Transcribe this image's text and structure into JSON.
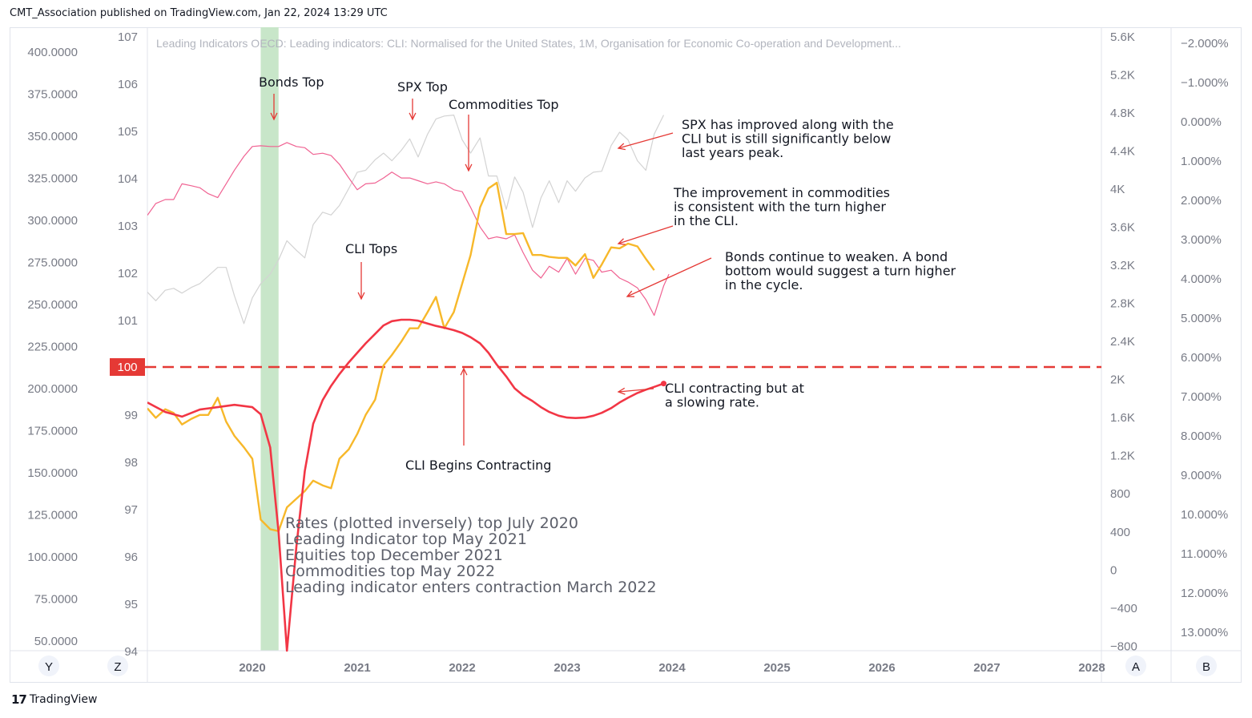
{
  "header": {
    "published": "CMT_Association published on TradingView.com, Jan 22, 2024 13:29 UTC"
  },
  "footer": {
    "brand": "TradingView",
    "logo_glyph": "17"
  },
  "chart_data": {
    "type": "line",
    "title": "Leading Indicators OECD: Leading indicators: CLI: Normalised for the United States, 1M, Organisation for Economic Co-operation and Development...",
    "x_axis": {
      "ticks": [
        "2020",
        "2021",
        "2022",
        "2023",
        "2024",
        "2025",
        "2026",
        "2027",
        "2028"
      ]
    },
    "axes": {
      "far_left": {
        "ticks": [
          "400.0000",
          "375.0000",
          "350.0000",
          "325.0000",
          "300.0000",
          "275.0000",
          "250.0000",
          "225.0000",
          "200.0000",
          "175.0000",
          "150.0000",
          "125.0000",
          "100.0000",
          "75.0000",
          "50.0000"
        ],
        "range": [
          50,
          400
        ]
      },
      "cli": {
        "ticks": [
          "107",
          "106",
          "105",
          "104",
          "103",
          "102",
          "101",
          "99",
          "98",
          "97",
          "96",
          "95",
          "94"
        ],
        "range": [
          94,
          107
        ],
        "marker": "100"
      },
      "spx": {
        "ticks": [
          "5.6K",
          "5.2K",
          "4.8K",
          "4.4K",
          "4K",
          "3.6K",
          "3.2K",
          "2.8K",
          "2.4K",
          "2K",
          "1.6K",
          "1.2K",
          "800",
          "400",
          "0",
          "−400",
          "−800"
        ],
        "range": [
          -800,
          5600
        ]
      },
      "rates": {
        "ticks": [
          "−2.000%",
          "−1.000%",
          "0.000%",
          "1.000%",
          "2.000%",
          "3.000%",
          "4.000%",
          "5.000%",
          "6.000%",
          "7.000%",
          "8.000%",
          "9.000%",
          "10.000%",
          "11.000%",
          "12.000%",
          "13.000%"
        ],
        "range": [
          -2,
          13
        ],
        "inverted": true
      }
    },
    "scale_buttons": {
      "y": "Y",
      "z": "Z",
      "a": "A",
      "b": "B"
    },
    "shaded_period": {
      "x_start": 2020.08,
      "x_end": 2020.25,
      "color": "#c8e6c9"
    },
    "series": [
      {
        "axis": "cli",
        "color": "#f23645",
        "points": [
          [
            2019.0,
            99.25
          ],
          [
            2019.17,
            99.05
          ],
          [
            2019.33,
            98.95
          ],
          [
            2019.5,
            99.1
          ],
          [
            2019.67,
            99.15
          ],
          [
            2019.83,
            99.2
          ],
          [
            2020.0,
            99.15
          ],
          [
            2020.08,
            99.0
          ],
          [
            2020.17,
            98.3
          ],
          [
            2020.25,
            96.5
          ],
          [
            2020.33,
            94.0
          ],
          [
            2020.42,
            96.2
          ],
          [
            2020.5,
            97.8
          ],
          [
            2020.58,
            98.8
          ],
          [
            2020.67,
            99.3
          ],
          [
            2020.75,
            99.6
          ],
          [
            2020.83,
            99.85
          ],
          [
            2020.92,
            100.1
          ],
          [
            2021.0,
            100.3
          ],
          [
            2021.08,
            100.5
          ],
          [
            2021.17,
            100.7
          ],
          [
            2021.25,
            100.88
          ],
          [
            2021.33,
            100.97
          ],
          [
            2021.42,
            101.0
          ],
          [
            2021.5,
            101.0
          ],
          [
            2021.58,
            100.98
          ],
          [
            2021.67,
            100.92
          ],
          [
            2021.75,
            100.87
          ],
          [
            2021.83,
            100.83
          ],
          [
            2021.92,
            100.78
          ],
          [
            2022.0,
            100.72
          ],
          [
            2022.08,
            100.63
          ],
          [
            2022.17,
            100.5
          ],
          [
            2022.25,
            100.3
          ],
          [
            2022.33,
            100.05
          ],
          [
            2022.42,
            99.8
          ],
          [
            2022.5,
            99.55
          ],
          [
            2022.58,
            99.4
          ],
          [
            2022.67,
            99.28
          ],
          [
            2022.75,
            99.15
          ],
          [
            2022.83,
            99.05
          ],
          [
            2022.92,
            98.97
          ],
          [
            2023.0,
            98.93
          ],
          [
            2023.08,
            98.92
          ],
          [
            2023.17,
            98.93
          ],
          [
            2023.25,
            98.97
          ],
          [
            2023.33,
            99.03
          ],
          [
            2023.42,
            99.13
          ],
          [
            2023.5,
            99.25
          ],
          [
            2023.58,
            99.35
          ],
          [
            2023.67,
            99.45
          ],
          [
            2023.75,
            99.52
          ],
          [
            2023.83,
            99.58
          ],
          [
            2023.92,
            99.65
          ]
        ]
      },
      {
        "axis": "spx",
        "color": "#f7b82a",
        "points": [
          [
            2019.0,
            1690
          ],
          [
            2019.08,
            1590
          ],
          [
            2019.17,
            1680
          ],
          [
            2019.25,
            1640
          ],
          [
            2019.33,
            1520
          ],
          [
            2019.42,
            1580
          ],
          [
            2019.5,
            1620
          ],
          [
            2019.58,
            1620
          ],
          [
            2019.67,
            1800
          ],
          [
            2019.75,
            1550
          ],
          [
            2019.83,
            1400
          ],
          [
            2019.92,
            1280
          ],
          [
            2020.0,
            1160
          ],
          [
            2020.08,
            520
          ],
          [
            2020.17,
            420
          ],
          [
            2020.25,
            400
          ],
          [
            2020.33,
            650
          ],
          [
            2020.42,
            740
          ],
          [
            2020.5,
            820
          ],
          [
            2020.58,
            930
          ],
          [
            2020.67,
            880
          ],
          [
            2020.75,
            850
          ],
          [
            2020.83,
            1160
          ],
          [
            2020.92,
            1260
          ],
          [
            2021.0,
            1420
          ],
          [
            2021.08,
            1620
          ],
          [
            2021.17,
            1780
          ],
          [
            2021.25,
            2140
          ],
          [
            2021.33,
            2250
          ],
          [
            2021.42,
            2390
          ],
          [
            2021.5,
            2530
          ],
          [
            2021.58,
            2530
          ],
          [
            2021.67,
            2700
          ],
          [
            2021.75,
            2860
          ],
          [
            2021.83,
            2530
          ],
          [
            2021.92,
            2700
          ],
          [
            2022.0,
            3000
          ],
          [
            2022.08,
            3300
          ],
          [
            2022.17,
            3800
          ],
          [
            2022.25,
            4000
          ],
          [
            2022.33,
            4060
          ],
          [
            2022.42,
            3520
          ],
          [
            2022.5,
            3520
          ],
          [
            2022.58,
            3530
          ],
          [
            2022.67,
            3300
          ],
          [
            2022.75,
            3300
          ],
          [
            2022.83,
            3280
          ],
          [
            2022.92,
            3270
          ],
          [
            2023.0,
            3270
          ],
          [
            2023.08,
            3190
          ],
          [
            2023.17,
            3310
          ],
          [
            2023.25,
            3060
          ],
          [
            2023.33,
            3200
          ],
          [
            2023.42,
            3380
          ],
          [
            2023.5,
            3370
          ],
          [
            2023.58,
            3420
          ],
          [
            2023.67,
            3390
          ],
          [
            2023.75,
            3260
          ],
          [
            2023.83,
            3140
          ]
        ]
      },
      {
        "axis": "spx",
        "color": "#d3d3d3",
        "points": [
          [
            2019.0,
            2910
          ],
          [
            2019.08,
            2820
          ],
          [
            2019.17,
            2930
          ],
          [
            2019.25,
            2950
          ],
          [
            2019.33,
            2900
          ],
          [
            2019.42,
            2960
          ],
          [
            2019.5,
            3000
          ],
          [
            2019.58,
            3080
          ],
          [
            2019.67,
            3170
          ],
          [
            2019.75,
            3170
          ],
          [
            2019.83,
            2870
          ],
          [
            2019.92,
            2580
          ],
          [
            2020.0,
            2850
          ],
          [
            2020.08,
            3000
          ],
          [
            2020.17,
            3100
          ],
          [
            2020.25,
            3250
          ],
          [
            2020.33,
            3450
          ],
          [
            2020.42,
            3350
          ],
          [
            2020.5,
            3270
          ],
          [
            2020.58,
            3620
          ],
          [
            2020.67,
            3750
          ],
          [
            2020.75,
            3720
          ],
          [
            2020.83,
            3820
          ],
          [
            2020.92,
            4000
          ],
          [
            2021.0,
            4170
          ],
          [
            2021.08,
            4190
          ],
          [
            2021.17,
            4300
          ],
          [
            2021.25,
            4370
          ],
          [
            2021.33,
            4290
          ],
          [
            2021.42,
            4400
          ],
          [
            2021.5,
            4520
          ],
          [
            2021.58,
            4330
          ],
          [
            2021.67,
            4570
          ],
          [
            2021.75,
            4730
          ],
          [
            2021.83,
            4760
          ],
          [
            2021.92,
            4770
          ],
          [
            2022.0,
            4510
          ],
          [
            2022.08,
            4370
          ],
          [
            2022.17,
            4530
          ],
          [
            2022.25,
            4130
          ],
          [
            2022.33,
            4130
          ],
          [
            2022.42,
            3780
          ],
          [
            2022.5,
            4120
          ],
          [
            2022.58,
            3960
          ],
          [
            2022.67,
            3590
          ],
          [
            2022.75,
            3900
          ],
          [
            2022.83,
            4080
          ],
          [
            2022.92,
            3850
          ],
          [
            2023.0,
            4080
          ],
          [
            2023.08,
            3970
          ],
          [
            2023.17,
            4110
          ],
          [
            2023.25,
            4170
          ],
          [
            2023.33,
            4180
          ],
          [
            2023.42,
            4450
          ],
          [
            2023.5,
            4590
          ],
          [
            2023.58,
            4510
          ],
          [
            2023.67,
            4290
          ],
          [
            2023.75,
            4190
          ],
          [
            2023.83,
            4570
          ],
          [
            2023.92,
            4770
          ]
        ]
      },
      {
        "axis": "rates",
        "color": "#f06292",
        "points": [
          [
            2019.0,
            2.4
          ],
          [
            2019.08,
            2.1
          ],
          [
            2019.17,
            2.0
          ],
          [
            2019.25,
            2.0
          ],
          [
            2019.33,
            1.6
          ],
          [
            2019.42,
            1.65
          ],
          [
            2019.5,
            1.7
          ],
          [
            2019.58,
            1.85
          ],
          [
            2019.67,
            1.95
          ],
          [
            2019.75,
            1.6
          ],
          [
            2019.83,
            1.25
          ],
          [
            2019.92,
            0.9
          ],
          [
            2020.0,
            0.65
          ],
          [
            2020.08,
            0.63
          ],
          [
            2020.17,
            0.65
          ],
          [
            2020.25,
            0.65
          ],
          [
            2020.33,
            0.55
          ],
          [
            2020.42,
            0.65
          ],
          [
            2020.5,
            0.68
          ],
          [
            2020.58,
            0.85
          ],
          [
            2020.67,
            0.82
          ],
          [
            2020.75,
            0.88
          ],
          [
            2020.83,
            1.1
          ],
          [
            2020.92,
            1.45
          ],
          [
            2021.0,
            1.75
          ],
          [
            2021.08,
            1.6
          ],
          [
            2021.17,
            1.58
          ],
          [
            2021.25,
            1.45
          ],
          [
            2021.33,
            1.3
          ],
          [
            2021.42,
            1.45
          ],
          [
            2021.5,
            1.45
          ],
          [
            2021.58,
            1.52
          ],
          [
            2021.67,
            1.6
          ],
          [
            2021.75,
            1.55
          ],
          [
            2021.83,
            1.6
          ],
          [
            2021.92,
            1.75
          ],
          [
            2022.0,
            1.8
          ],
          [
            2022.08,
            2.2
          ],
          [
            2022.17,
            2.7
          ],
          [
            2022.25,
            3.0
          ],
          [
            2022.33,
            2.95
          ],
          [
            2022.42,
            3.0
          ],
          [
            2022.5,
            2.9
          ],
          [
            2022.58,
            3.35
          ],
          [
            2022.67,
            3.8
          ],
          [
            2022.75,
            4.0
          ],
          [
            2022.83,
            3.7
          ],
          [
            2022.92,
            3.85
          ],
          [
            2023.0,
            3.5
          ],
          [
            2023.08,
            3.9
          ],
          [
            2023.17,
            3.5
          ],
          [
            2023.25,
            3.55
          ],
          [
            2023.33,
            3.85
          ],
          [
            2023.42,
            3.8
          ],
          [
            2023.5,
            4.0
          ],
          [
            2023.58,
            4.1
          ],
          [
            2023.67,
            4.25
          ],
          [
            2023.75,
            4.55
          ],
          [
            2023.83,
            4.95
          ],
          [
            2023.92,
            4.2
          ],
          [
            2023.97,
            3.9
          ]
        ]
      }
    ],
    "annotations": [
      {
        "text": "Bonds Top"
      },
      {
        "text": "SPX Top"
      },
      {
        "text": "Commodities Top"
      },
      {
        "text": "CLI Tops"
      },
      {
        "text": "CLI Begins Contracting"
      },
      {
        "text": "SPX has improved along with the CLI but is still significantly below last years peak.",
        "lines": [
          "SPX has improved along with the",
          "CLI but is still significantly below",
          "last years peak."
        ]
      },
      {
        "text": "The improvement in commodities is consistent with the turn higher in the CLI.",
        "lines": [
          "The improvement in commodities",
          "is consistent with the turn higher",
          "in the CLI."
        ]
      },
      {
        "text": "Bonds continue to weaken. A bond bottom would suggest a turn higher in the cycle.",
        "lines": [
          "Bonds continue to weaken. A bond",
          "bottom would suggest a turn higher",
          "in the cycle."
        ]
      },
      {
        "text": "CLI contracting but at a slowing rate.",
        "lines": [
          "CLI contracting but at",
          "a slowing rate."
        ]
      }
    ],
    "summary_lines": [
      "Rates (plotted inversely) top July 2020",
      "Leading Indicator top May 2021",
      "Equities top December 2021",
      "Commodities top May 2022",
      "Leading indicator enters contraction March 2022"
    ],
    "grid": false,
    "legend": "none"
  }
}
